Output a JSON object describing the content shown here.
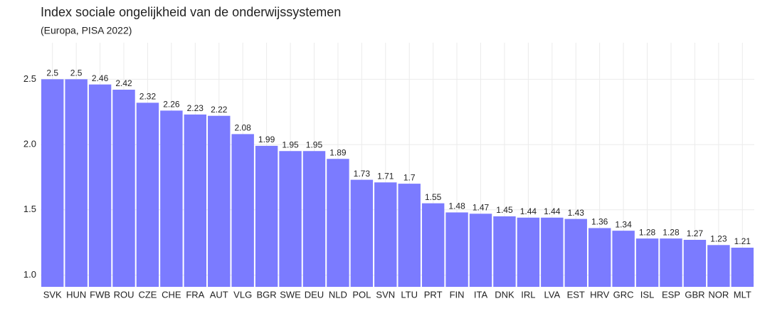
{
  "chart_data": {
    "type": "bar",
    "title": "Index sociale ongelijkheid van de onderwijssystemen",
    "subtitle": "(Europa, PISA 2022)",
    "categories": [
      "SVK",
      "HUN",
      "FWB",
      "ROU",
      "CZE",
      "CHE",
      "FRA",
      "AUT",
      "VLG",
      "BGR",
      "SWE",
      "DEU",
      "NLD",
      "POL",
      "SVN",
      "LTU",
      "PRT",
      "FIN",
      "ITA",
      "DNK",
      "IRL",
      "LVA",
      "EST",
      "HRV",
      "GRC",
      "ISL",
      "ESP",
      "GBR",
      "NOR",
      "MLT"
    ],
    "values": [
      2.5,
      2.5,
      2.46,
      2.42,
      2.32,
      2.26,
      2.23,
      2.22,
      2.08,
      1.99,
      1.95,
      1.95,
      1.89,
      1.73,
      1.71,
      1.7,
      1.55,
      1.48,
      1.47,
      1.45,
      1.44,
      1.44,
      1.43,
      1.36,
      1.34,
      1.28,
      1.28,
      1.27,
      1.23,
      1.21
    ],
    "color": "#7b7bff",
    "ylim": [
      0.91,
      2.78
    ],
    "yticks": [
      {
        "value": 1,
        "label": "1.0"
      },
      1.5,
      {
        "value": 2,
        "label": "2.0"
      },
      2.5
    ],
    "grid": true
  }
}
